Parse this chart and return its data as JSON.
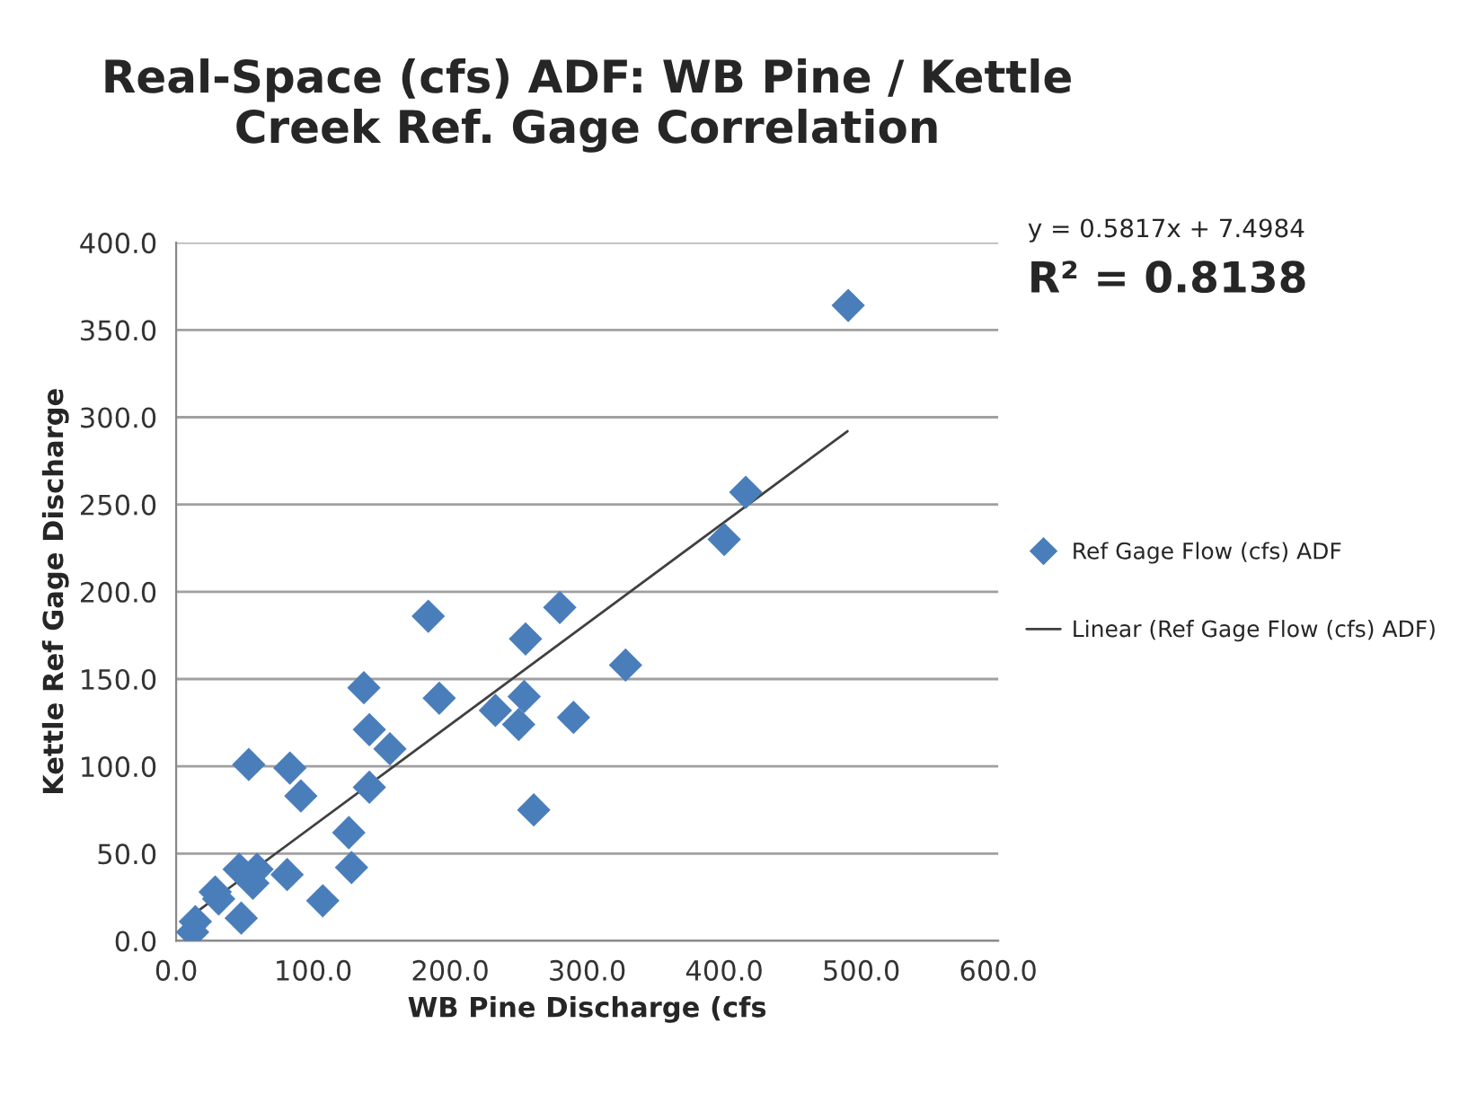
{
  "chart_data": {
    "type": "scatter",
    "title": "Real-Space (cfs) ADF: WB Pine / Kettle\nCreek Ref. Gage Correlation",
    "xlabel": "WB Pine Discharge (cfs",
    "ylabel": "Kettle Ref Gage Discharge",
    "series": [
      {
        "name": "Ref Gage Flow (cfs) ADF",
        "color": "#4a7ebb",
        "marker": "diamond",
        "x": [
          490.5,
          415.7,
          400,
          328,
          280,
          255,
          254,
          290,
          233,
          250,
          261,
          184,
          192,
          137,
          141,
          156,
          141,
          126,
          128,
          107,
          91,
          83,
          53,
          46,
          59,
          56,
          81,
          28.5,
          31,
          47.5,
          14,
          12
        ],
        "values": [
          364,
          257,
          230,
          158,
          191,
          173,
          140,
          128,
          132,
          124,
          75,
          186,
          139,
          145,
          121,
          110,
          88,
          62,
          42,
          23,
          83,
          99,
          101,
          41,
          41,
          33,
          38,
          28,
          24,
          13,
          11,
          5
        ]
      },
      {
        "name": "Linear (Ref Gage Flow (cfs) ADF)",
        "color": "#404040",
        "type": "line",
        "marker": "none",
        "line_style": "solid",
        "x": [
          14,
          490
        ],
        "values": [
          16,
          292
        ]
      }
    ],
    "xlim": [
      0,
      600
    ],
    "xticks": [
      {
        "value": 0,
        "label": "0.0"
      },
      {
        "value": 100,
        "label": "100.0"
      },
      {
        "value": 200,
        "label": "200.0"
      },
      {
        "value": 300,
        "label": "300.0"
      },
      {
        "value": 400,
        "label": "400.0"
      },
      {
        "value": 500,
        "label": "500.0"
      },
      {
        "value": 600,
        "label": "600.0"
      }
    ],
    "ylim": [
      0,
      400
    ],
    "yticks": [
      {
        "value": 0,
        "label": "0.0"
      },
      {
        "value": 50,
        "label": "50.0"
      },
      {
        "value": 100,
        "label": "100.0"
      },
      {
        "value": 150,
        "label": "150.0"
      },
      {
        "value": 200,
        "label": "200.0"
      },
      {
        "value": 250,
        "label": "250.0"
      },
      {
        "value": 300,
        "label": "300.0"
      },
      {
        "value": 350,
        "label": "350.0"
      },
      {
        "value": 400,
        "label": "400.0"
      }
    ],
    "grid": "y",
    "legend": "right",
    "annotations": [
      "y = 0.5817x + 7.4984",
      "R² = 0.8138"
    ]
  }
}
